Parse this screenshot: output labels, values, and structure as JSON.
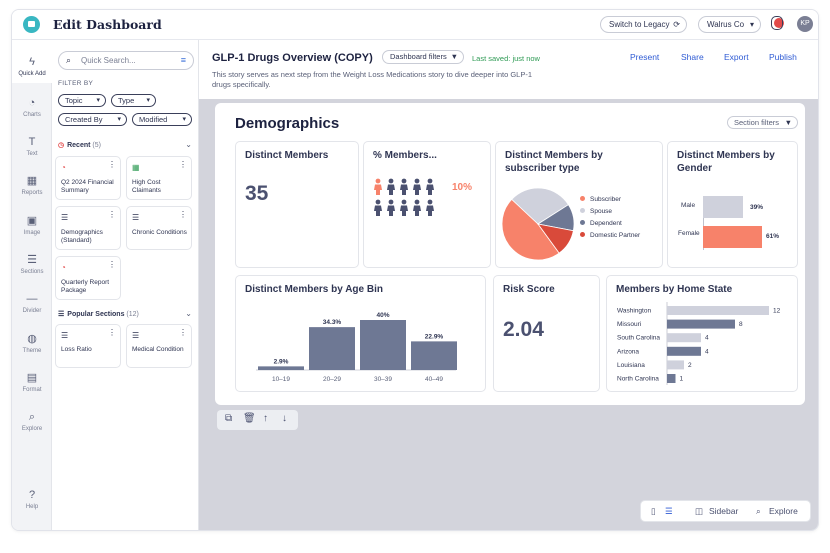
{
  "header": {
    "app_title": "Edit Dashboard",
    "switch_legacy": "Switch to Legacy",
    "org": "Walrus Co",
    "avatar_initials": "KP"
  },
  "rail": {
    "items": [
      "Quick Add",
      "Charts",
      "Text",
      "Reports",
      "Image",
      "Sections",
      "Divider",
      "Theme",
      "Format",
      "Explore"
    ],
    "help": "Help"
  },
  "panel": {
    "search_placeholder": "Quick Search...",
    "filter_by": "FILTER BY",
    "filters": [
      "Topic",
      "Type",
      "Created By",
      "Modified"
    ],
    "recent_label": "Recent",
    "recent_count": "(5)",
    "recent_cards": [
      "Q2 2024 Financial Summary",
      "High Cost Claimants",
      "Demographics (Standard)",
      "Chronic Conditions",
      "Quarterly Report Package"
    ],
    "popular_label": "Popular Sections",
    "popular_count": "(12)",
    "popular_cards": [
      "Loss Ratio",
      "Medical Condition"
    ]
  },
  "doc": {
    "title": "GLP-1 Drugs Overview (COPY)",
    "dashboard_filters": "Dashboard filters",
    "saved": "Last saved: just now",
    "actions": [
      "Present",
      "Share",
      "Export",
      "Publish"
    ],
    "description": "This story serves as next step from the Weight Loss Medications story to dive deeper into GLP-1 drugs specifically."
  },
  "board": {
    "title": "Demographics",
    "section_filters": "Section filters",
    "tiles": {
      "distinct_members": {
        "title": "Distinct Members",
        "value": "35"
      },
      "pct_members": {
        "title": "% Members...",
        "value": "10%"
      },
      "subscriber": {
        "title": "Distinct Members by subscriber type",
        "legend": [
          "Subscriber",
          "Spouse",
          "Dependent",
          "Domestic Partner"
        ]
      },
      "gender": {
        "title": "Distinct Members by Gender",
        "labels": [
          "Male",
          "Female"
        ],
        "values": [
          "39%",
          "61%"
        ]
      },
      "age": {
        "title": "Distinct Members by Age Bin",
        "labels": [
          "10–19",
          "20–29",
          "30–39",
          "40–49"
        ],
        "values": [
          "2.9%",
          "34.3%",
          "40%",
          "22.9%"
        ]
      },
      "risk": {
        "title": "Risk Score",
        "value": "2.04"
      },
      "state": {
        "title": "Members by Home State",
        "labels": [
          "Washington",
          "Missouri",
          "South Carolina",
          "Arizona",
          "Louisiana",
          "North Carolina"
        ],
        "values": [
          "12",
          "8",
          "4",
          "4",
          "2",
          "1"
        ]
      }
    }
  },
  "bottom": {
    "sidebar": "Sidebar",
    "explore": "Explore"
  },
  "colors": {
    "accent": "#2f5bd4",
    "coral": "#f7826a",
    "slate": "#6e7894",
    "light": "#cfd1dc",
    "red": "#d94a3a"
  }
}
